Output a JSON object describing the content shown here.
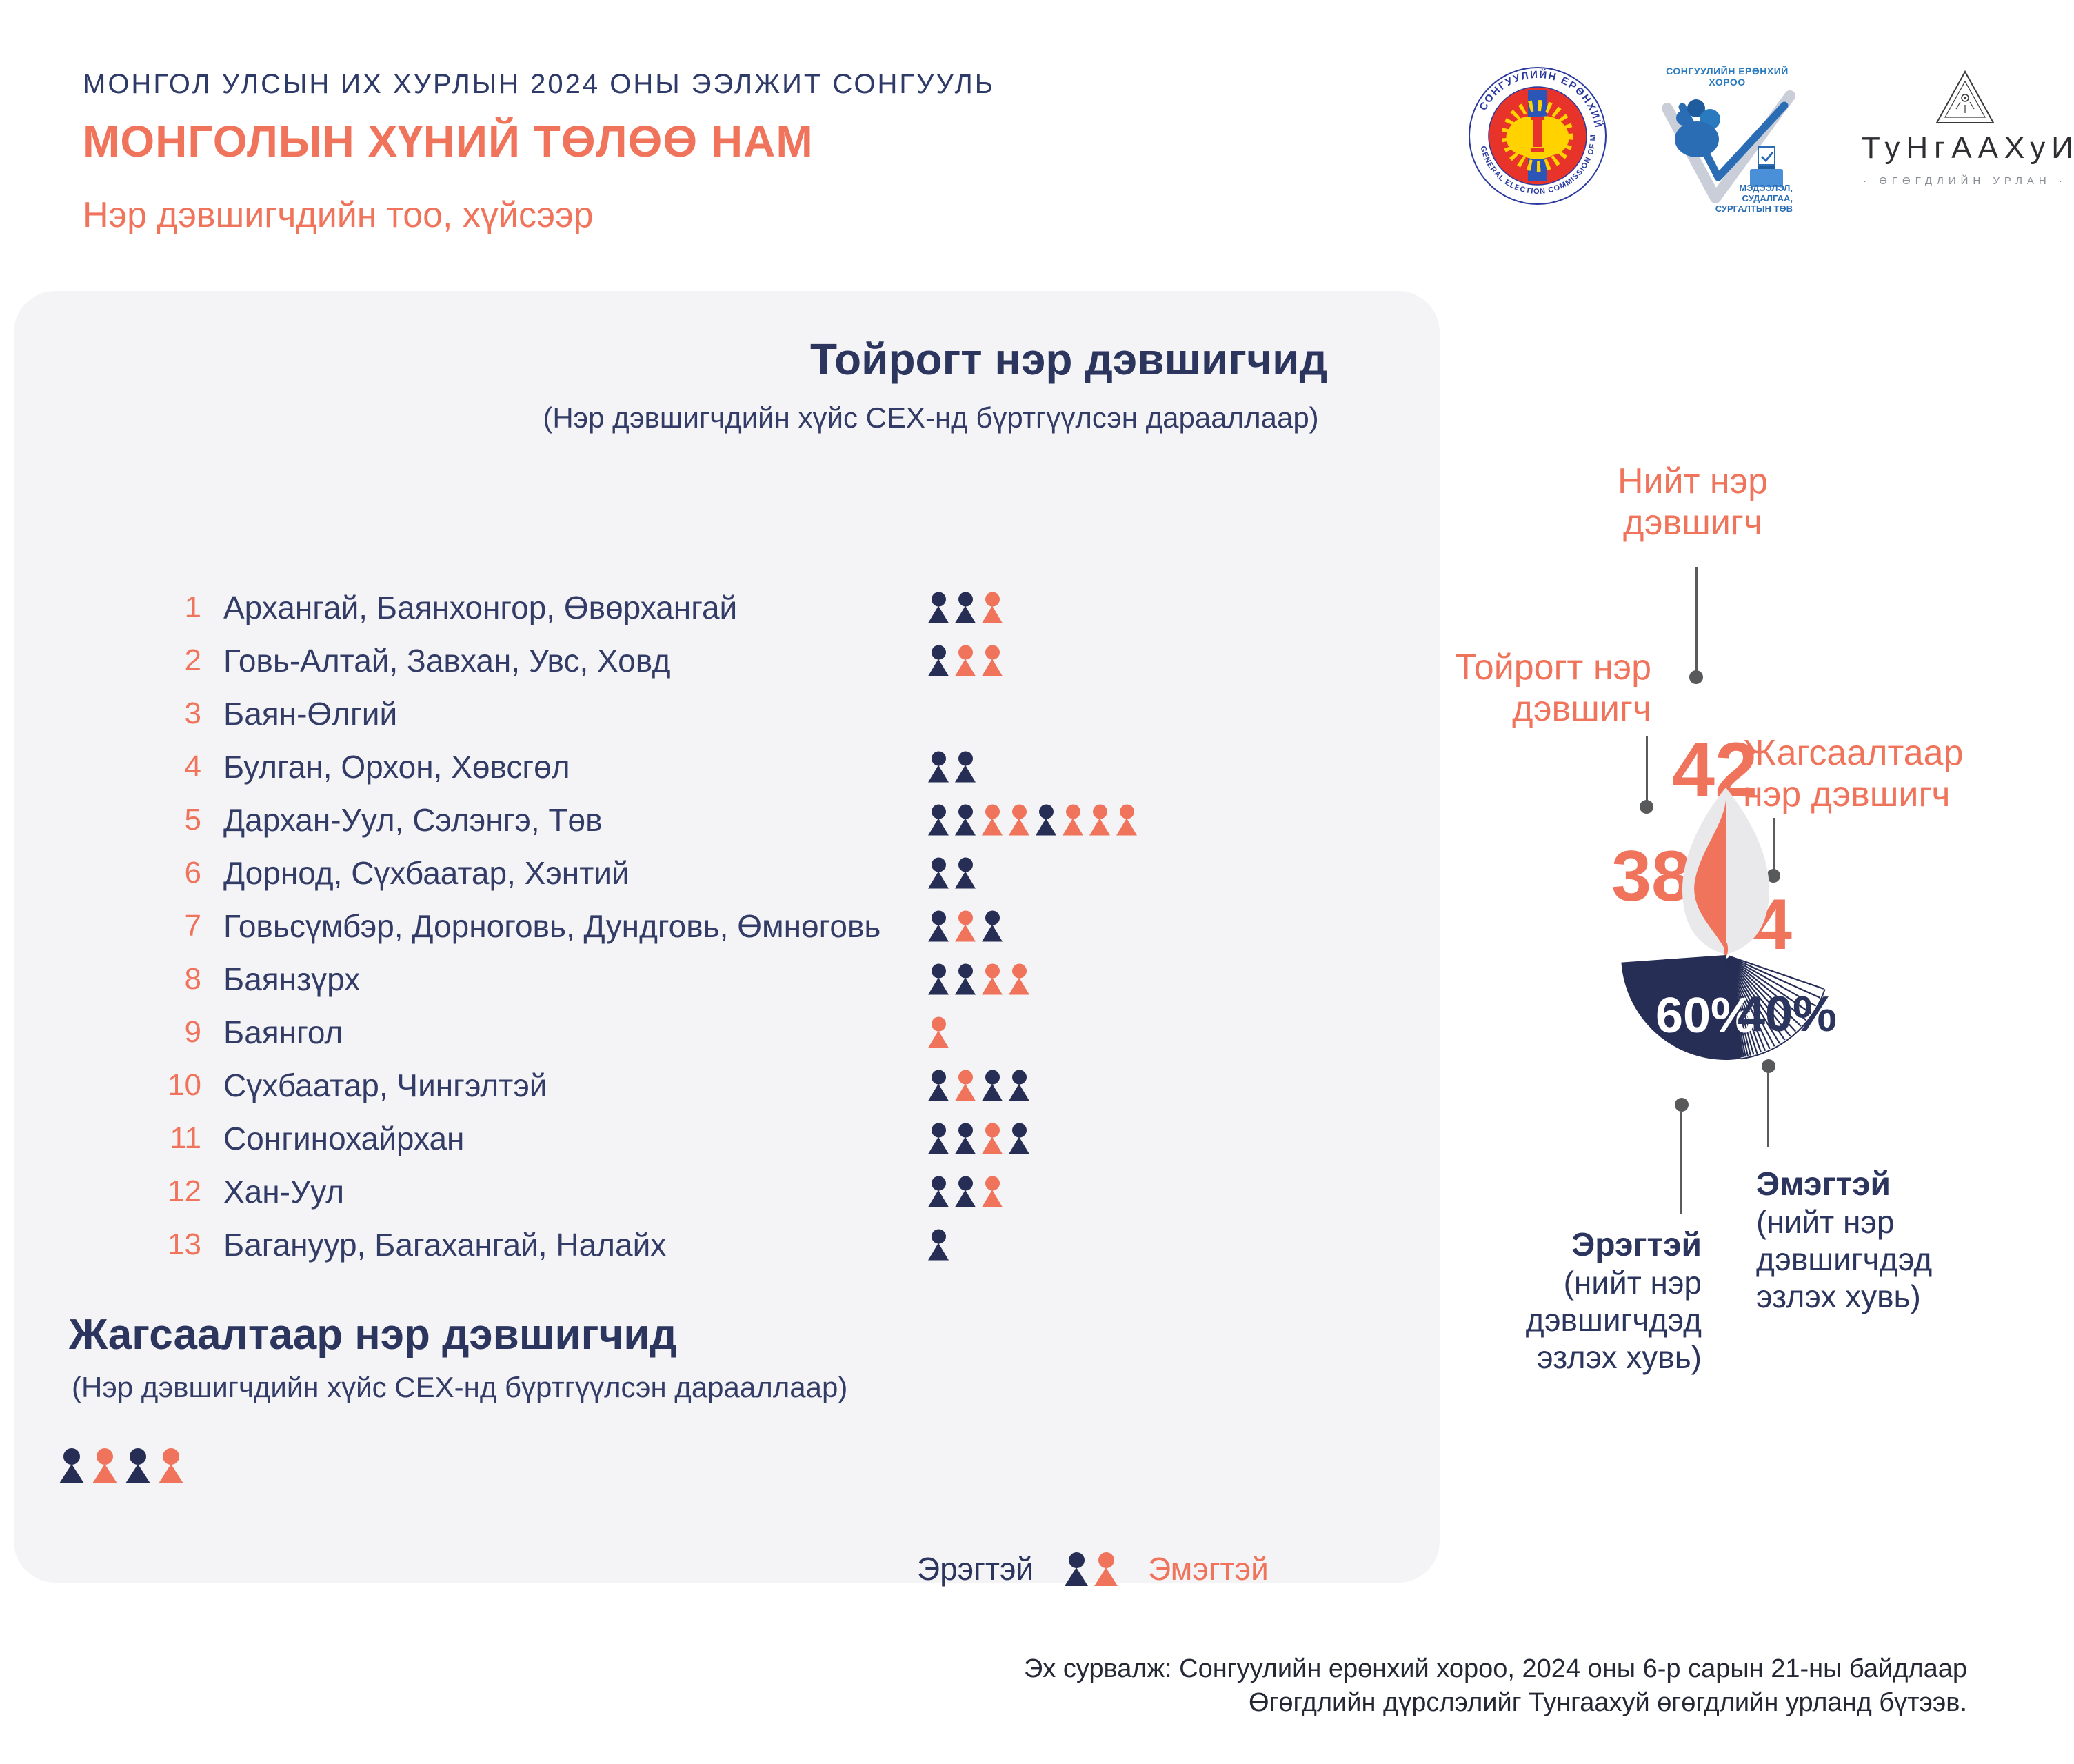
{
  "header": {
    "eyebrow": "МОНГОЛ УЛСЫН ИХ ХУРЛЫН 2024 ОНЫ ЭЭЛЖИТ СОНГУУЛЬ",
    "party": "МОНГОЛЫН ХҮНИЙ ТӨЛӨӨ НАМ",
    "subtitle": "Нэр дэвшигчдийн тоо, хүйсээр"
  },
  "logos": {
    "gec_seal": {
      "ring_top": "СОНГУУЛИЙН ЕРӨНХИЙ ХОРОО",
      "ring_bottom": "GENERAL ELECTION COMMISSION OF MONGOLIA"
    },
    "gec_center": {
      "title": "СОНГУУЛИЙН ЕРӨНХИЙ ХОРОО",
      "caption": "МЭДЭЭЛЭЛ,\nСУДАЛГАА,\nСУРГАЛТЫН ТӨВ"
    },
    "tungaakhui": {
      "wordmark": "ТуНгААХуИ",
      "caption": "· ӨГӨГДЛИЙН УРЛАН ·"
    }
  },
  "panel": {
    "title": "Тойрогт нэр дэвшигчид",
    "subtitle": "(Нэр дэвшигчдийн хүйс СЕХ-нд бүртгүүлсэн дарааллаар)",
    "rows": [
      {
        "num": "1",
        "region": "Архангай, Баянхонгор, Өвөрхангай",
        "genders": "MMF"
      },
      {
        "num": "2",
        "region": "Говь-Алтай, Завхан, Увс, Ховд",
        "genders": "MFF"
      },
      {
        "num": "3",
        "region": "Баян-Өлгий",
        "genders": ""
      },
      {
        "num": "4",
        "region": "Булган, Орхон, Хөвсгөл",
        "genders": "MM"
      },
      {
        "num": "5",
        "region": "Дархан-Уул, Сэлэнгэ, Төв",
        "genders": "MMFFMFFF"
      },
      {
        "num": "6",
        "region": "Дорнод, Сүхбаатар, Хэнтий",
        "genders": "MM"
      },
      {
        "num": "7",
        "region": "Говьсүмбэр, Дорноговь, Дундговь, Өмнөговь",
        "genders": "MFM"
      },
      {
        "num": "8",
        "region": "Баянзүрх",
        "genders": "MMFF"
      },
      {
        "num": "9",
        "region": "Баянгол",
        "genders": "F"
      },
      {
        "num": "10",
        "region": "Сүхбаатар, Чингэлтэй",
        "genders": "MFMM"
      },
      {
        "num": "11",
        "region": "Сонгинохайрхан",
        "genders": "MMFM"
      },
      {
        "num": "12",
        "region": "Хан-Уул",
        "genders": "MMF"
      },
      {
        "num": "13",
        "region": "Багануур, Багахангай, Налайх",
        "genders": "M"
      }
    ],
    "list_section": {
      "title": "Жагсаалтаар нэр дэвшигчид",
      "subtitle": "(Нэр дэвшигчдийн хүйс СЕХ-нд бүртгүүлсэн дарааллаар)",
      "genders": "MFMF"
    },
    "legend": {
      "male": "Эрэгтэй",
      "female": "Эмэгтэй"
    }
  },
  "infographic": {
    "total_label": "Нийт нэр\nдэвшигч",
    "total_value": "42",
    "district_label": "Тойрогт нэр\nдэвшигч",
    "district_value": "38",
    "list_label": "Жагсаалтаар\nнэр дэвшигч",
    "list_value": "4",
    "male_pct": "60%",
    "female_pct": "40%",
    "male_label": "Эрэгтэй",
    "male_sub": "(нийт нэр\nдэвшигчдэд\nэзлэх хувь)",
    "female_label": "Эмэгтэй",
    "female_sub": "(нийт нэр\nдэвшигчдэд\nэзлэх хувь)"
  },
  "footer": {
    "line1": "Эх сурвалж: Сонгуулийн ерөнхий хороо, 2024 оны 6-р сарын 21-ны байдлаар",
    "line2": "Өгөгдлийн дүрслэлийг Тунгаахуй өгөгдлийн урланд бүтээв."
  },
  "colors": {
    "coral": "#F0735B",
    "navy_dark": "#272E55",
    "navy_text": "#333C66",
    "heading_navy": "#2B355E",
    "panel_bg": "#F4F4F6",
    "flame_gray": "#E9E9EB",
    "leader_gray": "#5B5B5E"
  },
  "chart_data": [
    {
      "type": "pictogram",
      "title": "Тойрогт нэр дэвшигчид",
      "note": "(Нэр дэвшигчдийн хүйс СЕХ-нд бүртгүүлсэн дарааллаар)",
      "categories": [
        "Архангай, Баянхонгор, Өвөрхангай",
        "Говь-Алтай, Завхан, Увс, Ховд",
        "Баян-Өлгий",
        "Булган, Орхон, Хөвсгөл",
        "Дархан-Уул, Сэлэнгэ, Төв",
        "Дорнод, Сүхбаатар, Хэнтий",
        "Говьсүмбэр, Дорноговь, Дундговь, Өмнөговь",
        "Баянзүрх",
        "Баянгол",
        "Сүхбаатар, Чингэлтэй",
        "Сонгинохайрхан",
        "Хан-Уул",
        "Багануур, Багахангай, Налайх"
      ],
      "series": [
        {
          "name": "Эрэгтэй",
          "values": [
            2,
            1,
            0,
            2,
            3,
            2,
            2,
            2,
            0,
            3,
            3,
            2,
            1
          ]
        },
        {
          "name": "Эмэгтэй",
          "values": [
            1,
            2,
            0,
            0,
            5,
            0,
            1,
            2,
            1,
            1,
            1,
            1,
            0
          ]
        }
      ],
      "icon_order": [
        "MMF",
        "MFF",
        "",
        "MM",
        "MMFFMFFF",
        "MM",
        "MFM",
        "MMFF",
        "F",
        "MFMM",
        "MMFM",
        "MMF",
        "M"
      ],
      "legend": [
        "Эрэгтэй",
        "Эмэгтэй"
      ]
    },
    {
      "type": "pictogram",
      "title": "Жагсаалтаар нэр дэвшигчид",
      "note": "(Нэр дэвшигчдийн хүйс СЕХ-нд бүртгүүлсэн дарааллаар)",
      "series": [
        {
          "name": "Эрэгтэй",
          "values": [
            2
          ]
        },
        {
          "name": "Эмэгтэй",
          "values": [
            2
          ]
        }
      ],
      "icon_order": [
        "MFMF"
      ]
    },
    {
      "type": "pie",
      "title": "Нийт нэр дэвшигч",
      "totals": [
        {
          "label": "Нийт нэр дэвшигч",
          "value": 42
        },
        {
          "label": "Тойрогт нэр дэвшигч",
          "value": 38
        },
        {
          "label": "Жагсаалтаар нэр дэвшигч",
          "value": 4
        }
      ],
      "values": [
        {
          "label": "Эрэгтэй (нийт нэр дэвшигчдэд эзлэх хувь)",
          "value": 60
        },
        {
          "label": "Эмэгтэй (нийт нэр дэвшигчдэд эзлэх хувь)",
          "value": 40
        }
      ],
      "legend_position": "callout-labels"
    }
  ]
}
